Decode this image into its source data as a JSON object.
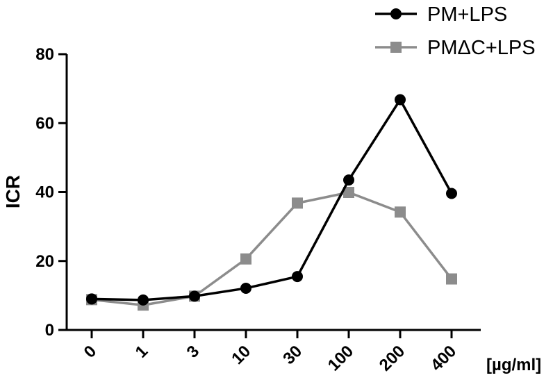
{
  "chart_data": {
    "type": "line",
    "title": "",
    "ylabel": "ICR",
    "xunit": "[µg/ml]",
    "categories": [
      "0",
      "1",
      "3",
      "10",
      "30",
      "100",
      "200",
      "400"
    ],
    "yticks": [
      "0",
      "20",
      "40",
      "60",
      "80"
    ],
    "ylim": [
      0,
      80
    ],
    "grid": false,
    "legend_position": "top-right",
    "series": [
      {
        "name": "PM+LPS",
        "marker": "circle",
        "color": "#000000",
        "values": [
          9,
          8.7,
          9.8,
          12.1,
          15.5,
          43.5,
          66.8,
          39.6
        ]
      },
      {
        "name": "PMΔC+LPS",
        "marker": "square",
        "color": "#8c8c8c",
        "values": [
          8.8,
          7.2,
          9.8,
          20.6,
          36.8,
          39.9,
          34.2,
          14.8
        ]
      }
    ]
  }
}
